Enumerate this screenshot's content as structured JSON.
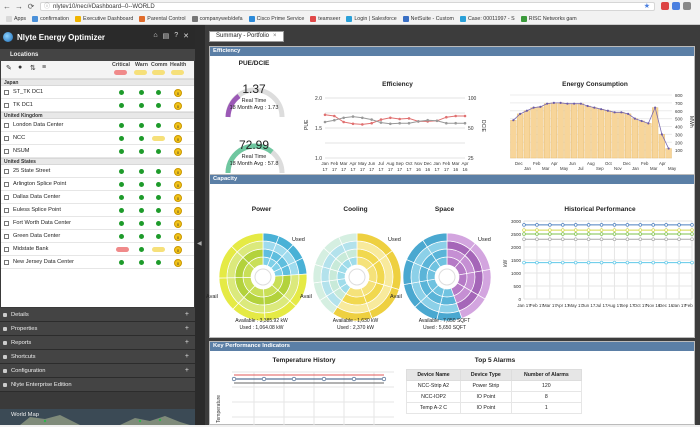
{
  "browser": {
    "url": "nlytev10/nec/#Dashboard--0--WORLD",
    "bookmarks": [
      "Apps",
      "confirmation",
      "Executive Dashboard",
      "Parental Control",
      "companyweb/defa",
      "Cisco Prime Service",
      "teamseer",
      "Login | Salesforce",
      "NetSuite - Custom",
      "Case: 00011997 - S",
      "RISC Networks gam"
    ]
  },
  "app": {
    "title": "Nlyte Energy Optimizer"
  },
  "locations": {
    "header": "Locations",
    "columns": [
      "Critical",
      "Warn",
      "Comm",
      "Health"
    ],
    "regions": [
      {
        "name": "Japan",
        "rows": [
          {
            "name": "ST_TK DC1",
            "health": "0"
          },
          {
            "name": "TK DC1",
            "health": "0"
          }
        ]
      },
      {
        "name": "United Kingdom",
        "rows": [
          {
            "name": "London Data Center",
            "health": "0"
          },
          {
            "name": "NCC",
            "health": "0"
          },
          {
            "name": "NSUM",
            "health": "0"
          }
        ]
      },
      {
        "name": "United States",
        "rows": [
          {
            "name": "25 State Street",
            "health": "0"
          },
          {
            "name": "Arlington Splice Point",
            "health": "0"
          },
          {
            "name": "Dallas Data Center",
            "health": "0"
          },
          {
            "name": "Euless Splice Point",
            "health": "0"
          },
          {
            "name": "Fort Worth Data Center",
            "health": "0"
          },
          {
            "name": "Green Data Center",
            "health": "0"
          },
          {
            "name": "Midstate Bank",
            "health": "0"
          },
          {
            "name": "New Jersey Data Center",
            "health": "0"
          }
        ]
      }
    ]
  },
  "accordion": [
    "Details",
    "Properties",
    "Reports",
    "Shortcuts",
    "Configuration",
    "Nlyte Enterprise Edition",
    "World Map"
  ],
  "tab": {
    "label": "Summary - Portfolio"
  },
  "efficiency": {
    "header": "Efficiency",
    "pue_title": "PUE/DCIE",
    "pue_value": "1.37",
    "pue_label": "Real Time",
    "pue_avg": "18 Month Avg : 1.73",
    "dcie_value": "72.99",
    "dcie_label": "Real Time",
    "dcie_avg": "18 Month Avg : 57.8",
    "eff_title": "Efficiency",
    "energy_title": "Energy Consumption"
  },
  "capacity": {
    "header": "Capacity",
    "power": {
      "title": "Power",
      "used_label": "Used",
      "avail_label": "Avail",
      "available": "Available : 3,385.92 kW",
      "used": "Used : 1,064.08 kW"
    },
    "cooling": {
      "title": "Cooling",
      "used_label": "Used",
      "avail_label": "Avail",
      "available": "Available : 1,630 kW",
      "used": "Used : 2,370 kW"
    },
    "space": {
      "title": "Space",
      "used_label": "Used",
      "avail_label": "Avail",
      "available": "Available : 7,050 SQFT",
      "used": "Used : 5,650 SQFT"
    },
    "hist_title": "Historical Performance"
  },
  "kpi": {
    "header": "Key Performance Indicators",
    "temp_title": "Temperature History",
    "temp_ylabel": "Temperature",
    "alarms_title": "Top 5 Alarms",
    "alarm_headers": [
      "Device Name",
      "Device Type",
      "Number of Alarms"
    ],
    "alarms": [
      [
        "NCC-Strip A2",
        "Power Strip",
        "120"
      ],
      [
        "NCC-IOP2",
        "IO Point",
        "8"
      ],
      [
        "Temp A-2 C",
        "IO Point",
        "1"
      ]
    ]
  },
  "chart_data": [
    {
      "type": "line",
      "title": "Efficiency",
      "ylabel": "PUE",
      "y2label": "DCIE",
      "categories": [
        "Jan 17",
        "Feb 17",
        "Mar 17",
        "Apr 17",
        "May 17",
        "Jun 17",
        "Jul 17",
        "Aug 17",
        "Sep 17",
        "Oct 17",
        "Nov 16",
        "Dec 16",
        "Jan 17",
        "Feb 17",
        "Mar 16",
        "Apr 16"
      ],
      "x_labels": [
        "Jan",
        "Feb",
        "Mar",
        "Apr",
        "May",
        "Jun",
        "Jul",
        "Aug",
        "Sep",
        "Oct",
        "Nov",
        "Dec",
        "Jan",
        "Feb",
        "Mar",
        "Apr"
      ],
      "x_labels2": [
        "17",
        "17",
        "17",
        "17",
        "17",
        "17",
        "17",
        "17",
        "17",
        "17",
        "16",
        "16",
        "17",
        "17",
        "16",
        "16"
      ],
      "ylim": [
        1,
        2
      ],
      "yticks": [
        "2.0",
        "1.5",
        "1.0"
      ],
      "y2ticks": [
        "100",
        "50",
        "25"
      ],
      "series": [
        {
          "values": [
            1.72,
            1.7,
            1.6,
            1.57,
            1.56,
            1.58,
            1.64,
            1.67,
            1.65,
            1.66,
            1.61,
            1.61,
            1.62,
            1.68,
            1.7,
            1.7
          ]
        },
        {
          "values": [
            1.6,
            1.63,
            1.67,
            1.69,
            1.67,
            1.64,
            1.59,
            1.57,
            1.58,
            1.58,
            1.61,
            1.63,
            1.62,
            1.58,
            1.58,
            1.58
          ]
        }
      ]
    },
    {
      "type": "bar",
      "title": "Energy Consumption",
      "ylabel": "MWh",
      "categories": [
        "Dec Jan 16",
        "Feb Mar 16",
        "Apr 16",
        "May Jun 16",
        "Jul Aug 16",
        "Sep Oct 16",
        "Nov Dec 16",
        "Jan 17",
        "Feb 17",
        "Mar 17",
        "Apr 17",
        "May 17",
        "Jun 17",
        "Jul 17",
        "Aug 17",
        "Sep Oct 17",
        "Nov 17",
        "Dec 17",
        "Jan 18",
        "Feb 18",
        "Mar 18",
        "Apr 18",
        "May 18",
        "Jun 18"
      ],
      "x_labels": [
        "Dec",
        "Jan",
        "Feb",
        "Mar",
        "Apr",
        "May",
        "Jun",
        "Jul",
        "Aug",
        "Sep",
        "Oct",
        "Nov",
        "Dec",
        "Jan",
        "Feb",
        "Mar",
        "Apr",
        "May"
      ],
      "ylim": [
        0,
        800
      ],
      "yticks": [
        "800",
        "700",
        "600",
        "500",
        "400",
        "300",
        "200",
        "100"
      ],
      "values": [
        480,
        560,
        600,
        640,
        650,
        690,
        700,
        700,
        690,
        690,
        690,
        660,
        640,
        620,
        600,
        580,
        580,
        560,
        500,
        470,
        440,
        640,
        300,
        120
      ]
    },
    {
      "type": "line",
      "title": "Historical Performance",
      "ylabel": "kW",
      "x_labels": [
        "Jan 17",
        "Feb 17",
        "Mar 17",
        "Apr 17",
        "May 17",
        "Jun 17",
        "Jul 17",
        "Aug 17",
        "Sep 17",
        "Oct 17",
        "Nov 16",
        "Dec 16",
        "Jan 17",
        "Feb 17"
      ],
      "ylim": [
        0,
        3000
      ],
      "yticks": [
        "3000",
        "2500",
        "2000",
        "1500",
        "1000",
        "500",
        "0"
      ],
      "series": [
        {
          "values": [
            2850,
            2850,
            2850,
            2850,
            2850,
            2850,
            2850,
            2850,
            2850,
            2850,
            2850,
            2850,
            2850,
            2850
          ],
          "color": "#4a7fc0"
        },
        {
          "values": [
            2650,
            2650,
            2650,
            2650,
            2650,
            2650,
            2650,
            2650,
            2650,
            2650,
            2650,
            2650,
            2650,
            2650
          ],
          "color": "#d4d84a"
        },
        {
          "values": [
            2500,
            2500,
            2500,
            2500,
            2500,
            2500,
            2500,
            2500,
            2500,
            2500,
            2500,
            2500,
            2500,
            2500
          ],
          "color": "#7ec24a"
        },
        {
          "values": [
            2300,
            2300,
            2300,
            2300,
            2300,
            2300,
            2300,
            2300,
            2300,
            2300,
            2300,
            2300,
            2300,
            2300
          ],
          "color": "#aaa"
        },
        {
          "values": [
            1400,
            1400,
            1400,
            1400,
            1400,
            1400,
            1400,
            1400,
            1400,
            1400,
            1400,
            1400,
            1400,
            1400
          ],
          "color": "#5fc8e8"
        }
      ]
    },
    {
      "type": "pie",
      "title": "Power",
      "series": [
        {
          "name": "Used",
          "value": 1064.08
        },
        {
          "name": "Avail",
          "value": 3385.92
        }
      ]
    },
    {
      "type": "pie",
      "title": "Cooling",
      "series": [
        {
          "name": "Used",
          "value": 2370
        },
        {
          "name": "Avail",
          "value": 1630
        }
      ]
    },
    {
      "type": "pie",
      "title": "Space",
      "series": [
        {
          "name": "Used",
          "value": 5650
        },
        {
          "name": "Avail",
          "value": 7050
        }
      ]
    }
  ]
}
